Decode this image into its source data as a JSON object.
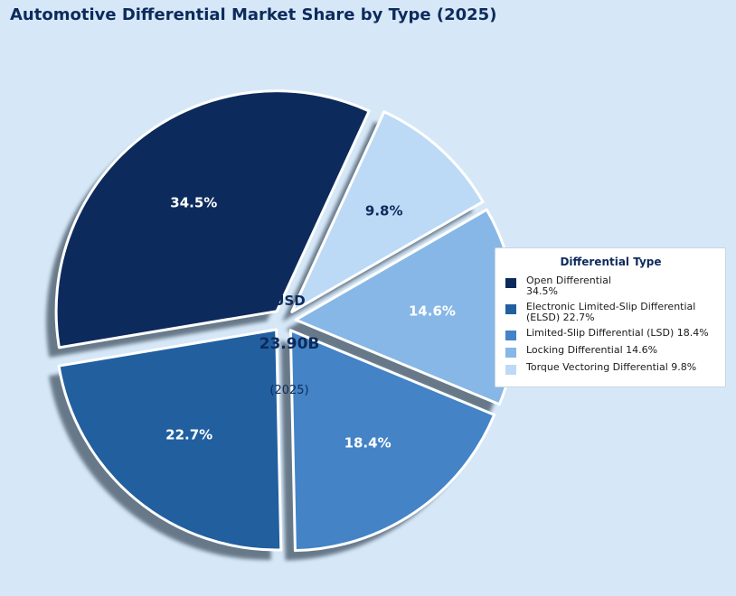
{
  "chart_data": {
    "type": "pie",
    "title": "Automotive Differential Market Share by Type (2025)",
    "center_label": {
      "line1": "USD",
      "line2": "23.90B",
      "line3": "(2025)"
    },
    "legend": {
      "title": "Differential Type",
      "placement": "right"
    },
    "slices": [
      {
        "name": "Open Differential",
        "legend_label": "Open Differential\n34.5%",
        "value": 34.5,
        "label": "34.5%",
        "color": "#0d2a5c"
      },
      {
        "name": "Electronic Limited-Slip Differential (ELSD)",
        "legend_label": "Electronic Limited-Slip Differential\n(ELSD) 22.7%",
        "value": 22.7,
        "label": "22.7%",
        "color": "#215f9f"
      },
      {
        "name": "Limited-Slip Differential (LSD)",
        "legend_label": "Limited-Slip Differential (LSD) 18.4%",
        "value": 18.4,
        "label": "18.4%",
        "color": "#4383c6"
      },
      {
        "name": "Locking Differential",
        "legend_label": "Locking Differential 14.6%",
        "value": 14.6,
        "label": "14.6%",
        "color": "#86b7e6"
      },
      {
        "name": "Torque Vectoring Differential",
        "legend_label": "Torque Vectoring Differential 9.8%",
        "value": 9.8,
        "label": "9.8%",
        "color": "#bcdaf5"
      }
    ]
  }
}
